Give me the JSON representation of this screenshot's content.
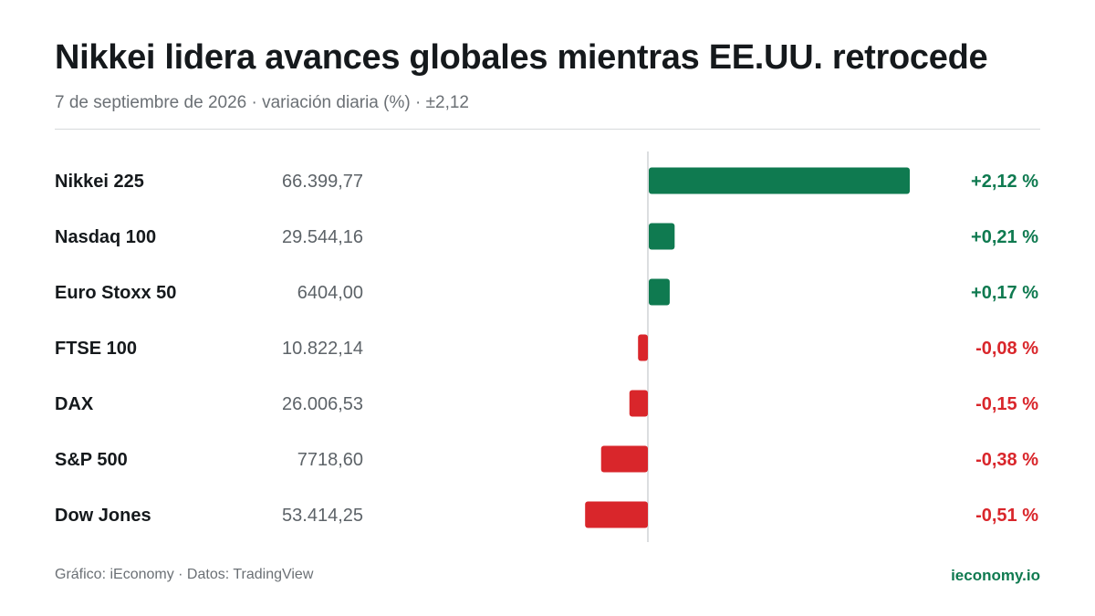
{
  "header": {
    "title": "Nikkei lidera avances globales mientras EE.UU. retrocede",
    "subtitle": "7 de septiembre de 2026 · variación diaria (%) · ±2,12"
  },
  "footer": {
    "source": "Gráfico: iEconomy · Datos: TradingView",
    "brand": "ieconomy.io"
  },
  "colors": {
    "positive": "#0f7a50",
    "negative": "#d9262b",
    "axis": "#d0d3d6"
  },
  "chart_data": {
    "type": "bar",
    "orientation": "horizontal",
    "xlim": [
      -2.12,
      2.12
    ],
    "grid": false,
    "legend": "none",
    "categories": [
      "Nikkei 225",
      "Nasdaq 100",
      "Euro Stoxx 50",
      "FTSE 100",
      "DAX",
      "S&P 500",
      "Dow Jones"
    ],
    "levels": [
      "66.399,77",
      "29.544,16",
      "6404,00",
      "10.822,14",
      "26.006,53",
      "7718,60",
      "53.414,25"
    ],
    "values": [
      2.12,
      0.21,
      0.17,
      -0.08,
      -0.15,
      -0.38,
      -0.51
    ],
    "value_labels": [
      "+2,12 %",
      "+0,21 %",
      "+0,17 %",
      "-0,08 %",
      "-0,15 %",
      "-0,38 %",
      "-0,51 %"
    ]
  }
}
